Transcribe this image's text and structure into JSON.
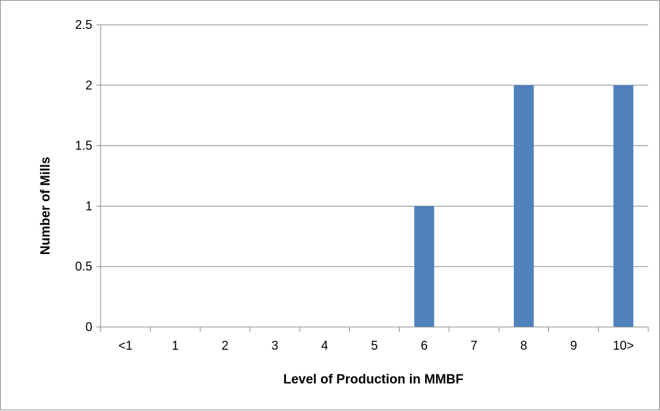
{
  "chart_data": {
    "type": "bar",
    "categories": [
      "<1",
      "1",
      "2",
      "3",
      "4",
      "5",
      "6",
      "7",
      "8",
      "9",
      "10>"
    ],
    "values": [
      0,
      0,
      0,
      0,
      0,
      0,
      1,
      0,
      2,
      0,
      2
    ],
    "title": "",
    "xlabel": "Level of Production in MMBF",
    "ylabel": "Number of Mills",
    "ylim": [
      0,
      2.5
    ],
    "yticks": [
      "0",
      "0.5",
      "1",
      "1.5",
      "2",
      "2.5"
    ],
    "grid": true,
    "legend": "none",
    "bar_color": "#4f81bd",
    "gridline_color": "#868686"
  }
}
